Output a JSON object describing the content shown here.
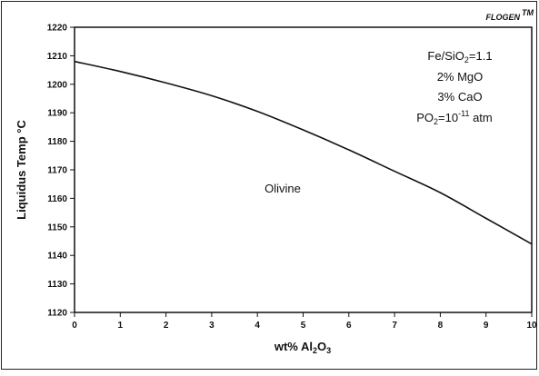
{
  "brand": {
    "name": "FLOGEN",
    "mark": "TM"
  },
  "chart_data": {
    "type": "line",
    "title": "",
    "xlabel": {
      "prefix": "wt% Al",
      "sub1": "2",
      "mid": "O",
      "sub2": "3"
    },
    "ylabel": "Liquidus Temp °C",
    "xlim": [
      0,
      10
    ],
    "ylim": [
      1120,
      1220
    ],
    "x_ticks": [
      "0",
      "1",
      "2",
      "3",
      "4",
      "5",
      "6",
      "7",
      "8",
      "9",
      "10"
    ],
    "y_ticks": [
      "1120",
      "1130",
      "1140",
      "1150",
      "1160",
      "1170",
      "1180",
      "1190",
      "1200",
      "1210",
      "1220"
    ],
    "grid": false,
    "legend": "none",
    "series": [
      {
        "x": [
          0,
          1,
          2,
          3,
          4,
          5,
          6,
          7,
          8,
          9,
          10
        ],
        "y": [
          1208,
          1204.5,
          1200.5,
          1196,
          1190.5,
          1184,
          1177,
          1169.5,
          1162,
          1153,
          1144
        ]
      }
    ],
    "annotations": {
      "ratio": {
        "a": "Fe/SiO",
        "sub": "2",
        "b": "=1.1"
      },
      "mgo": "2% MgO",
      "cao": "3% CaO",
      "po2": {
        "a": "PO",
        "sub": "2",
        "b": "=10",
        "sup": "-11",
        "c": " atm"
      },
      "phase": "Olivine"
    }
  }
}
